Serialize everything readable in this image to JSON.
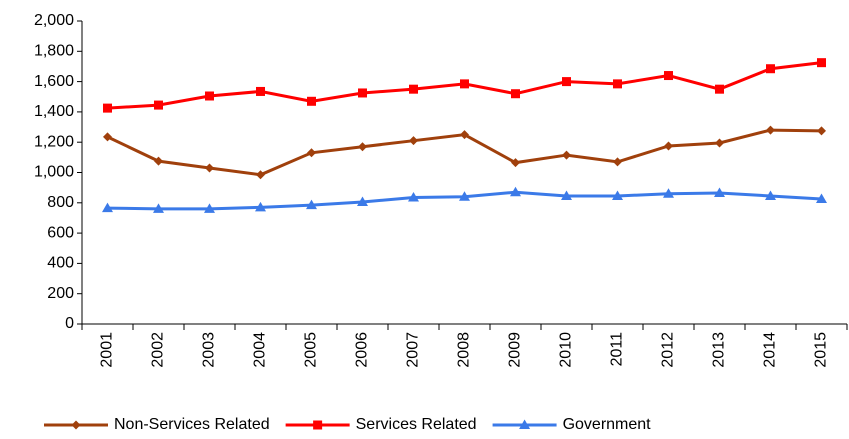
{
  "chart_data": {
    "type": "line",
    "categories": [
      "2001",
      "2002",
      "2003",
      "2004",
      "2005",
      "2006",
      "2007",
      "2008",
      "2009",
      "2010",
      "2011",
      "2012",
      "2013",
      "2014",
      "2015"
    ],
    "series": [
      {
        "name": "Non-Services Related",
        "color": "#a0400c",
        "marker": "diamond",
        "values": [
          1235,
          1075,
          1030,
          985,
          1130,
          1170,
          1210,
          1250,
          1065,
          1115,
          1070,
          1175,
          1195,
          1280,
          1275
        ]
      },
      {
        "name": "Services Related",
        "color": "#ff0000",
        "marker": "square",
        "values": [
          1425,
          1445,
          1505,
          1535,
          1470,
          1525,
          1550,
          1585,
          1520,
          1600,
          1585,
          1640,
          1550,
          1685,
          1725
        ]
      },
      {
        "name": "Government",
        "color": "#3b7ae8",
        "marker": "triangle",
        "values": [
          765,
          760,
          760,
          770,
          785,
          805,
          835,
          840,
          870,
          845,
          845,
          860,
          865,
          845,
          825
        ]
      }
    ],
    "ylim": [
      0,
      2000
    ],
    "yticks": [
      0,
      200,
      400,
      600,
      800,
      {
        "value": 1000,
        "label": "1,000"
      },
      {
        "value": 1200,
        "label": "1,200"
      },
      {
        "value": 1400,
        "label": "1,400"
      },
      {
        "value": 1600,
        "label": "1,600"
      },
      {
        "value": 1800,
        "label": "1,800"
      },
      {
        "value": 2000,
        "label": "2,000"
      }
    ],
    "grid": false,
    "legend": "bottom"
  }
}
